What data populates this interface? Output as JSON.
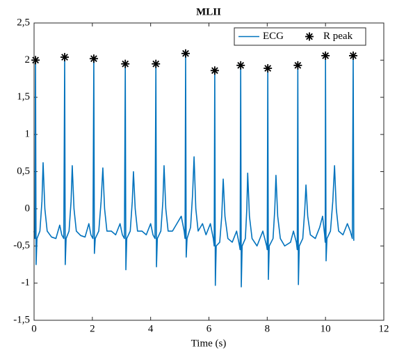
{
  "chart_data": {
    "type": "line",
    "title": "MLII",
    "x_label": "Time (s)",
    "xlim": [
      0,
      12
    ],
    "xticks": [
      0,
      2,
      4,
      6,
      8,
      10,
      12
    ],
    "ylim": [
      -1.5,
      2.5
    ],
    "yticks": [
      {
        "value": -1.5,
        "label": "-1,5"
      },
      -1,
      {
        "value": -0.5,
        "label": "-0,5"
      },
      0,
      {
        "value": 0.5,
        "label": "0,5"
      },
      1,
      {
        "value": 1.5,
        "label": "1,5"
      },
      2,
      {
        "value": 2.5,
        "label": "2,5"
      }
    ],
    "legend": "upper right",
    "series": [
      {
        "name": "ECG",
        "color": "#0072bd",
        "x": [
          0,
          0.03,
          0.05,
          0.07,
          0.1,
          0.2,
          0.27,
          0.31,
          0.37,
          0.45,
          0.6,
          0.75,
          0.88,
          0.95,
          1.02,
          1.05,
          1.07,
          1.1,
          1.2,
          1.27,
          1.31,
          1.37,
          1.45,
          1.6,
          1.75,
          1.88,
          1.95,
          2.02,
          2.05,
          2.07,
          2.1,
          2.22,
          2.3,
          2.36,
          2.42,
          2.5,
          2.65,
          2.8,
          2.95,
          3.03,
          3.1,
          3.13,
          3.15,
          3.18,
          3.3,
          3.37,
          3.41,
          3.47,
          3.55,
          3.7,
          3.85,
          4.0,
          4.08,
          4.15,
          4.18,
          4.2,
          4.23,
          4.35,
          4.42,
          4.46,
          4.52,
          4.6,
          4.75,
          4.9,
          5.05,
          5.15,
          5.18,
          5.2,
          5.22,
          5.25,
          5.37,
          5.44,
          5.49,
          5.55,
          5.63,
          5.78,
          5.9,
          6.05,
          6.15,
          6.18,
          6.2,
          6.22,
          6.25,
          6.37,
          6.44,
          6.49,
          6.55,
          6.65,
          6.8,
          6.95,
          7.05,
          7.07,
          7.09,
          7.11,
          7.14,
          7.25,
          7.3,
          7.33,
          7.39,
          7.48,
          7.65,
          7.85,
          7.98,
          8.0,
          8.02,
          8.04,
          8.07,
          8.2,
          8.26,
          8.3,
          8.36,
          8.45,
          8.6,
          8.8,
          8.9,
          9.0,
          9.03,
          9.05,
          9.07,
          9.1,
          9.22,
          9.29,
          9.33,
          9.39,
          9.48,
          9.65,
          9.8,
          9.9,
          9.97,
          9.99,
          10.0,
          10.02,
          10.05,
          10.17,
          10.25,
          10.31,
          10.37,
          10.45,
          10.6,
          10.75,
          10.85,
          10.92,
          10.95,
          10.97
        ],
        "values": [
          -0.3,
          -0.4,
          2.0,
          -0.75,
          -0.4,
          -0.3,
          0.1,
          0.62,
          0.0,
          -0.3,
          -0.38,
          -0.4,
          -0.22,
          -0.35,
          -0.4,
          2.04,
          -0.75,
          -0.4,
          -0.3,
          0.1,
          0.58,
          0.0,
          -0.3,
          -0.36,
          -0.38,
          -0.2,
          -0.35,
          -0.4,
          2.02,
          -0.6,
          -0.4,
          -0.3,
          0.1,
          0.55,
          0.0,
          -0.3,
          -0.3,
          -0.35,
          -0.2,
          -0.35,
          -0.4,
          1.95,
          -0.82,
          -0.4,
          -0.3,
          0.1,
          0.5,
          0.0,
          -0.3,
          -0.3,
          -0.35,
          -0.2,
          -0.35,
          -0.4,
          1.95,
          -0.78,
          -0.4,
          -0.3,
          0.1,
          0.58,
          0.0,
          -0.3,
          -0.3,
          -0.2,
          -0.1,
          -0.3,
          -0.4,
          2.09,
          -0.65,
          -0.4,
          -0.25,
          0.2,
          0.7,
          0.0,
          -0.3,
          -0.2,
          -0.35,
          -0.2,
          -0.4,
          -0.5,
          1.86,
          -1.03,
          -0.5,
          -0.45,
          -0.1,
          0.4,
          -0.1,
          -0.4,
          -0.45,
          -0.3,
          -0.5,
          -0.55,
          1.93,
          -1.05,
          -0.5,
          -0.4,
          0.0,
          0.48,
          -0.1,
          -0.4,
          -0.5,
          -0.3,
          -0.5,
          -0.55,
          1.89,
          -0.95,
          -0.5,
          -0.4,
          0.0,
          0.45,
          -0.1,
          -0.4,
          -0.5,
          -0.45,
          -0.3,
          -0.45,
          -0.55,
          1.93,
          -1.02,
          -0.5,
          -0.4,
          0.0,
          0.32,
          -0.1,
          -0.35,
          -0.4,
          -0.25,
          -0.1,
          -0.35,
          -0.45,
          2.06,
          -0.7,
          -0.4,
          -0.3,
          0.1,
          0.58,
          0.0,
          -0.3,
          -0.35,
          -0.2,
          -0.3,
          -0.4,
          2.06,
          -0.43
        ]
      },
      {
        "name": "R peak",
        "type": "scatter",
        "marker": "asterisk",
        "color": "#000000",
        "x": [
          0.05,
          1.05,
          2.05,
          3.13,
          4.18,
          5.2,
          6.2,
          7.09,
          8.02,
          9.05,
          10.0,
          10.95
        ],
        "values": [
          2.0,
          2.04,
          2.02,
          1.95,
          1.95,
          2.09,
          1.86,
          1.93,
          1.89,
          1.93,
          2.06,
          2.06
        ]
      }
    ]
  }
}
